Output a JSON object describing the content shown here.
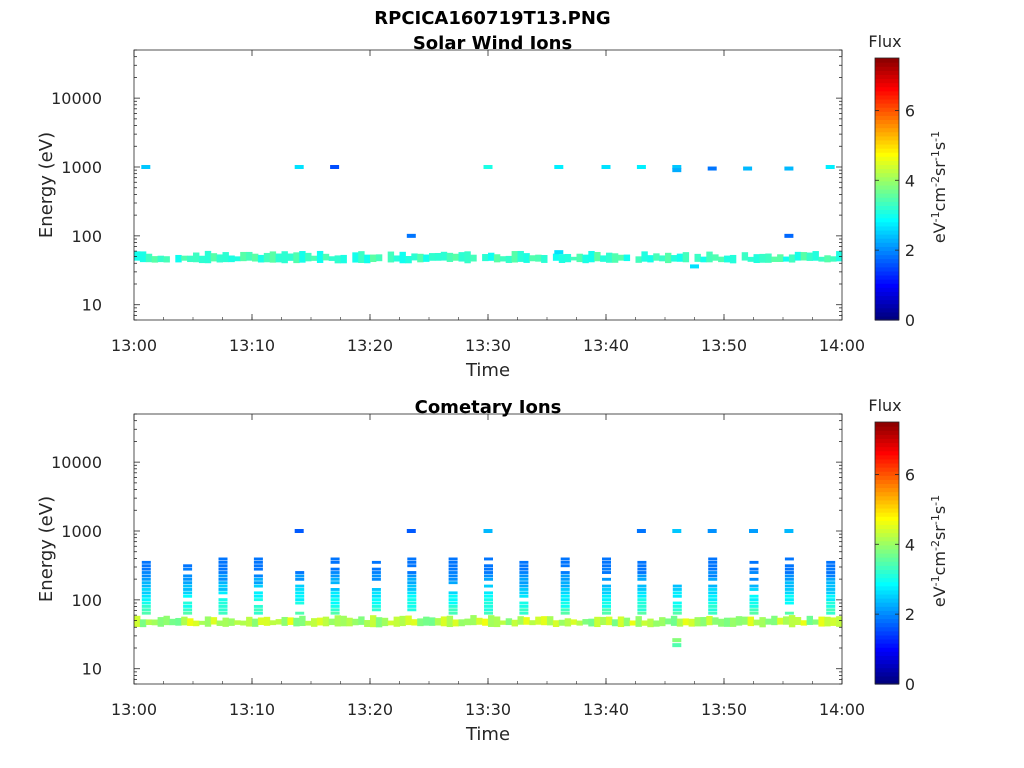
{
  "figure": {
    "title": "RPCICA160719T13.PNG"
  },
  "chart_data": [
    {
      "type": "heatmap",
      "title": "Solar Wind Ions",
      "xlabel": "Time",
      "ylabel": "Energy (eV)",
      "yscale": "log",
      "ylim": [
        6,
        50000
      ],
      "xlim": [
        "13:00",
        "14:00"
      ],
      "x_ticks": [
        "13:00",
        "13:10",
        "13:20",
        "13:30",
        "13:40",
        "13:50",
        "14:00"
      ],
      "y_ticks": [
        "10",
        "100",
        "1000",
        "10000"
      ],
      "colorbar": {
        "title": "Flux",
        "label": "eV-1cm-2sr-1s-1",
        "range": [
          0,
          7.5
        ],
        "ticks": [
          "0",
          "2",
          "4",
          "6"
        ]
      },
      "grid": false,
      "band": {
        "energy_low": 42,
        "energy_high": 55,
        "flux_range": [
          2.9,
          3.5
        ],
        "gaps": [
          "13:03",
          "13:18",
          "13:21",
          "13:29",
          "13:35",
          "13:42",
          "13:47",
          "13:51"
        ]
      },
      "sparse_points": [
        {
          "time": "13:01",
          "energy": 1000,
          "flux": 2.4
        },
        {
          "time": "13:14",
          "energy": 1000,
          "flux": 2.6
        },
        {
          "time": "13:17",
          "energy": 1000,
          "flux": 1.5
        },
        {
          "time": "13:23.5",
          "energy": 100,
          "flux": 1.8
        },
        {
          "time": "13:30",
          "energy": 1000,
          "flux": 3.0
        },
        {
          "time": "13:36",
          "energy": 1000,
          "flux": 2.7
        },
        {
          "time": "13:36",
          "energy": 58,
          "flux": 2.6
        },
        {
          "time": "13:40",
          "energy": 1000,
          "flux": 2.6
        },
        {
          "time": "13:43",
          "energy": 1000,
          "flux": 2.7
        },
        {
          "time": "13:46",
          "energy": 1000,
          "flux": 2.4
        },
        {
          "time": "13:46",
          "energy": 900,
          "flux": 2.2
        },
        {
          "time": "13:49",
          "energy": 950,
          "flux": 1.8
        },
        {
          "time": "13:52",
          "energy": 950,
          "flux": 2.3
        },
        {
          "time": "13:55.5",
          "energy": 100,
          "flux": 1.7
        },
        {
          "time": "13:55.5",
          "energy": 950,
          "flux": 2.3
        },
        {
          "time": "13:59",
          "energy": 1000,
          "flux": 2.7
        },
        {
          "time": "13:47.5",
          "energy": 36,
          "flux": 2.6
        }
      ]
    },
    {
      "type": "heatmap",
      "title": "Cometary Ions",
      "xlabel": "Time",
      "ylabel": "Energy (eV)",
      "yscale": "log",
      "ylim": [
        6,
        50000
      ],
      "xlim": [
        "13:00",
        "14:00"
      ],
      "x_ticks": [
        "13:00",
        "13:10",
        "13:20",
        "13:30",
        "13:40",
        "13:50",
        "14:00"
      ],
      "y_ticks": [
        "10",
        "100",
        "1000",
        "10000"
      ],
      "colorbar": {
        "title": "Flux",
        "label": "eV-1cm-2sr-1s-1",
        "range": [
          0,
          7.5
        ],
        "ticks": [
          "0",
          "2",
          "4",
          "6"
        ]
      },
      "grid": false,
      "band": {
        "energy_low": 42,
        "energy_high": 55,
        "flux_range": [
          3.6,
          4.6
        ]
      },
      "columns": [
        "13:01",
        "13:04.5",
        "13:07.5",
        "13:10.5",
        "13:14",
        "13:17",
        "13:20.5",
        "13:23.5",
        "13:27",
        "13:30",
        "13:33",
        "13:36.5",
        "13:40",
        "13:43",
        "13:46",
        "13:49",
        "13:52.5",
        "13:55.5",
        "13:59"
      ],
      "column_top_energy": [
        400,
        330,
        400,
        400,
        330,
        400,
        330,
        400,
        400,
        400,
        350,
        400,
        400,
        350,
        150,
        400,
        330,
        400,
        400
      ],
      "sparse_points": [
        {
          "time": "13:14",
          "energy": 1000,
          "flux": 1.6
        },
        {
          "time": "13:23.5",
          "energy": 1000,
          "flux": 1.6
        },
        {
          "time": "13:30",
          "energy": 1000,
          "flux": 2.3
        },
        {
          "time": "13:43",
          "energy": 1000,
          "flux": 1.8
        },
        {
          "time": "13:46",
          "energy": 1000,
          "flux": 2.4
        },
        {
          "time": "13:49",
          "energy": 1000,
          "flux": 2.0
        },
        {
          "time": "13:52.5",
          "energy": 1000,
          "flux": 2.1
        },
        {
          "time": "13:55.5",
          "energy": 1000,
          "flux": 2.3
        },
        {
          "time": "13:46",
          "energy": 22,
          "flux": 3.4
        },
        {
          "time": "13:46",
          "energy": 26,
          "flux": 3.8
        }
      ]
    }
  ]
}
